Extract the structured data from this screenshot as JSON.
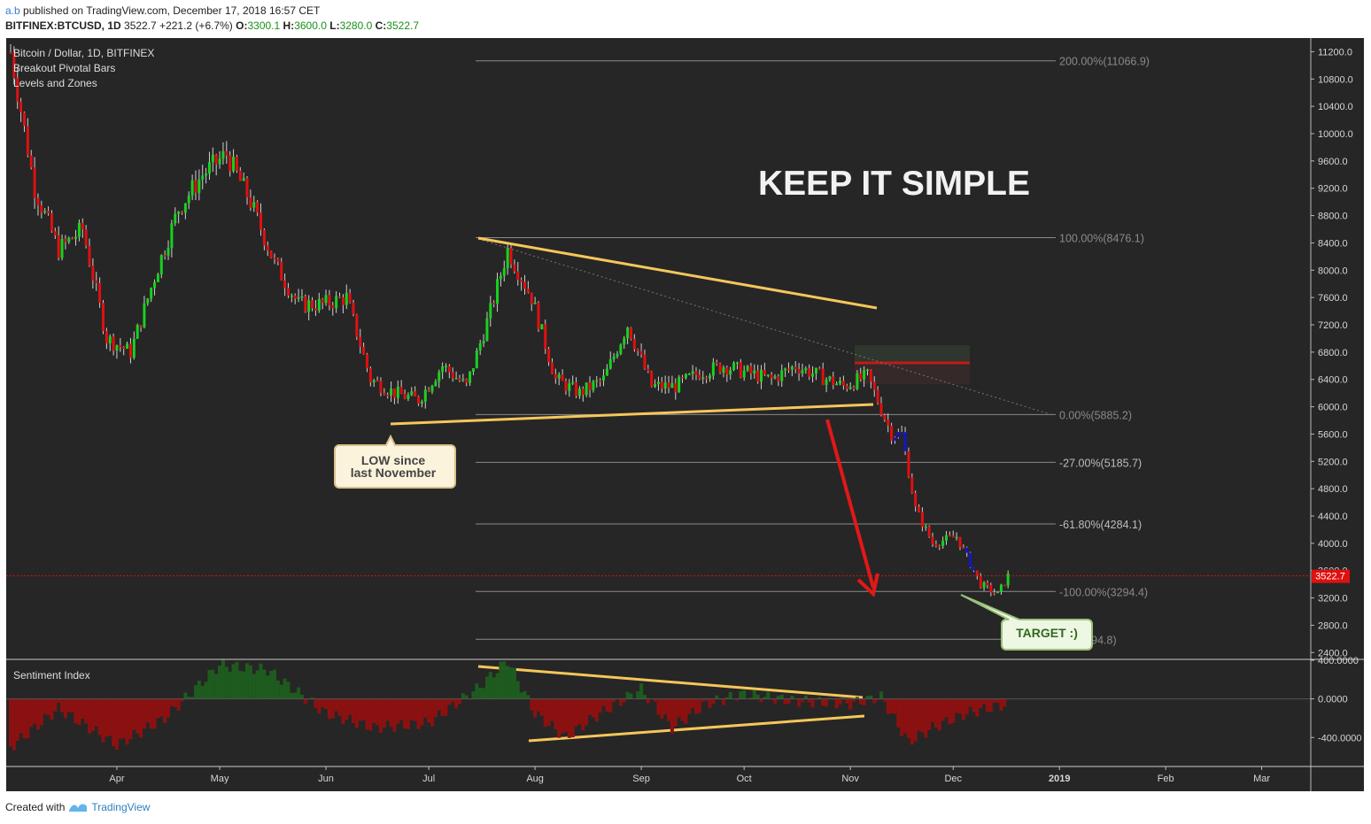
{
  "header": {
    "author": "a.b",
    "published": "published on TradingView.com, December 17, 2018 16:57 CET",
    "symbol": "BITFINEX:BTCUSD, 1D",
    "price": "3522.7",
    "change": "+221.2 (+6.7%)",
    "o_label": "O:",
    "o_value": "3300.1",
    "h_label": "H:",
    "h_value": "3600.0",
    "l_label": "L:",
    "l_value": "3280.0",
    "c_label": "C:",
    "c_value": "3522.7"
  },
  "legend": {
    "title": "Bitcoin / Dollar, 1D, BITFINEX",
    "indicator1": "Breakout Pivotal Bars",
    "indicator2": "Levels and Zones",
    "sentiment": "Sentiment Index"
  },
  "annotations": {
    "headline": "KEEP IT SIMPLE",
    "low_note_line1": "LOW since",
    "low_note_line2": "last November",
    "target": "TARGET :)",
    "last_price": "3522.7"
  },
  "colors": {
    "background": "#262626",
    "bull": "#18d11e",
    "bear": "#e01010",
    "neutral": "#1414c8",
    "trendline": "#f5c75a",
    "arrow": "#e21818",
    "sentiment_pos": "#1e5b1e",
    "sentiment_neg": "#8b1111"
  },
  "footer": {
    "created_with": "Created with",
    "brand": "TradingView"
  },
  "chart_data": [
    {
      "type": "line",
      "role": "price",
      "series": [
        {
          "name": "Bitcoin / Dollar, 1D, BITFINEX",
          "x": [
            "2018-03-01",
            "2018-03-08",
            "2018-03-15",
            "2018-03-22",
            "2018-03-29",
            "2018-04-05",
            "2018-04-12",
            "2018-04-19",
            "2018-04-26",
            "2018-05-03",
            "2018-05-10",
            "2018-05-17",
            "2018-05-24",
            "2018-05-31",
            "2018-06-07",
            "2018-06-14",
            "2018-06-21",
            "2018-06-28",
            "2018-07-05",
            "2018-07-12",
            "2018-07-19",
            "2018-07-24",
            "2018-07-31",
            "2018-08-07",
            "2018-08-14",
            "2018-08-21",
            "2018-08-28",
            "2018-09-04",
            "2018-09-11",
            "2018-09-18",
            "2018-09-25",
            "2018-10-02",
            "2018-10-09",
            "2018-10-16",
            "2018-10-23",
            "2018-10-30",
            "2018-11-06",
            "2018-11-13",
            "2018-11-16",
            "2018-11-20",
            "2018-11-25",
            "2018-12-02",
            "2018-12-09",
            "2018-12-14",
            "2018-12-17"
          ],
          "values": [
            11200,
            9200,
            8300,
            8600,
            7000,
            6800,
            7900,
            8900,
            9400,
            9700,
            9000,
            8100,
            7500,
            7500,
            7600,
            6400,
            6200,
            6100,
            6600,
            6300,
            7400,
            8300,
            7600,
            6400,
            6200,
            6400,
            7200,
            6300,
            6300,
            6500,
            6600,
            6500,
            6400,
            6600,
            6450,
            6300,
            6450,
            5600,
            5600,
            4500,
            4000,
            4100,
            3400,
            3250,
            3522.7
          ]
        }
      ],
      "ylim": [
        2300,
        11400
      ],
      "y_ticks": [
        "11200.0",
        "10800.0",
        "10400.0",
        "10000.0",
        "9600.0",
        "9200.0",
        "8800.0",
        "8400.0",
        "8000.0",
        "7600.0",
        "7200.0",
        "6800.0",
        "6400.0",
        "6000.0",
        "5600.0",
        "5200.0",
        "4800.0",
        "4400.0",
        "4000.0",
        "3600.0",
        "3200.0",
        "2800.0",
        "2400.0"
      ],
      "x_ticks": [
        "Apr",
        "May",
        "Jun",
        "Jul",
        "Aug",
        "Sep",
        "Oct",
        "Nov",
        "Dec",
        "2019",
        "Feb",
        "Mar"
      ],
      "fib_levels": [
        {
          "label": "200.00%(11066.9)",
          "value": 11066.9
        },
        {
          "label": "100.00%(8476.1)",
          "value": 8476.1
        },
        {
          "label": "0.00%(5885.2)",
          "value": 5885.2
        },
        {
          "label": "-27.00%(5185.7)",
          "value": 5185.7
        },
        {
          "label": "-61.80%(4284.1)",
          "value": 4284.1
        },
        {
          "label": "-100.00%(3294.4)",
          "value": 3294.4
        },
        {
          "label": "0%(2594.8)",
          "value": 2594.8
        }
      ],
      "last_price": 3522.7
    },
    {
      "type": "area",
      "role": "sentiment",
      "series": [
        {
          "name": "Sentiment Index",
          "x": [
            "2018-03-01",
            "2018-03-15",
            "2018-04-01",
            "2018-04-15",
            "2018-05-01",
            "2018-05-15",
            "2018-06-01",
            "2018-06-15",
            "2018-07-01",
            "2018-07-15",
            "2018-07-24",
            "2018-08-01",
            "2018-08-10",
            "2018-08-20",
            "2018-09-01",
            "2018-09-10",
            "2018-09-20",
            "2018-10-01",
            "2018-10-15",
            "2018-11-01",
            "2018-11-10",
            "2018-11-18",
            "2018-11-25",
            "2018-12-05",
            "2018-12-17"
          ],
          "values": [
            -500,
            -100,
            -480,
            -200,
            350,
            300,
            -150,
            -300,
            -250,
            100,
            400,
            -150,
            -400,
            -150,
            100,
            -300,
            -50,
            50,
            -20,
            -50,
            20,
            -450,
            -300,
            -150,
            -50
          ]
        }
      ],
      "ylim": [
        -700,
        400
      ],
      "y_ticks": [
        "400.0000",
        "0.0000",
        "-400.0000"
      ]
    }
  ]
}
